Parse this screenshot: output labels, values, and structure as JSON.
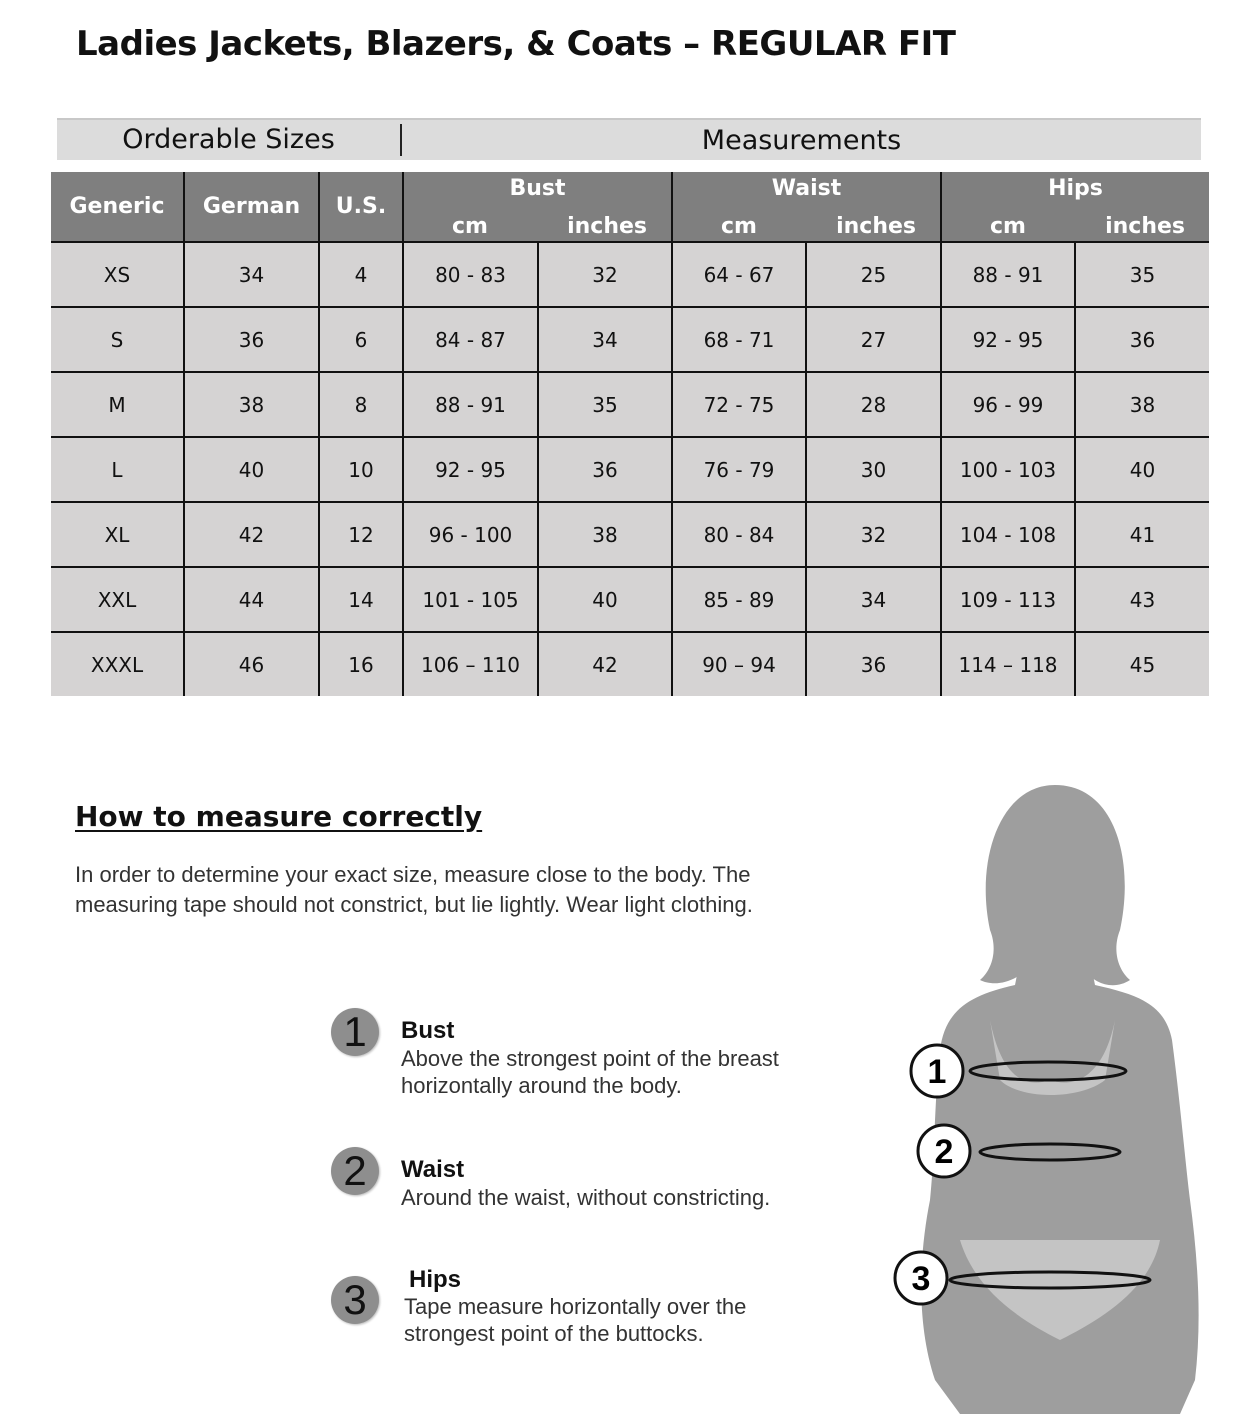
{
  "title": "Ladies Jackets, Blazers, & Coats – REGULAR FIT",
  "band": {
    "left": "Orderable Sizes",
    "right": "Measurements"
  },
  "table": {
    "headers": {
      "generic": "Generic",
      "german": "German",
      "us": "U.S.",
      "bust": "Bust",
      "waist": "Waist",
      "hips": "Hips",
      "cm": "cm",
      "inches": "inches"
    },
    "rows": [
      [
        "XS",
        "34",
        "4",
        "80 - 83",
        "32",
        "64 - 67",
        "25",
        "88 - 91",
        "35"
      ],
      [
        "S",
        "36",
        "6",
        "84 - 87",
        "34",
        "68 - 71",
        "27",
        "92 - 95",
        "36"
      ],
      [
        "M",
        "38",
        "8",
        "88 - 91",
        "35",
        "72 - 75",
        "28",
        "96 - 99",
        "38"
      ],
      [
        "L",
        "40",
        "10",
        "92 - 95",
        "36",
        "76 - 79",
        "30",
        "100 - 103",
        "40"
      ],
      [
        "XL",
        "42",
        "12",
        "96 - 100",
        "38",
        "80 - 84",
        "32",
        "104 - 108",
        "41"
      ],
      [
        "XXL",
        "44",
        "14",
        "101 - 105",
        "40",
        "85 - 89",
        "34",
        "109 - 113",
        "43"
      ],
      [
        "XXXL",
        "46",
        "16",
        "106 – 110",
        "42",
        "90 – 94",
        "36",
        "114 – 118",
        "45"
      ]
    ]
  },
  "how": {
    "heading": "How to measure correctly",
    "intro": "In order to determine your exact size, measure close to the body. The measuring tape should not constrict, but lie lightly. Wear light clothing.",
    "steps": [
      {
        "num": "1",
        "title": "Bust",
        "desc1": "Above the strongest point of the breast",
        "desc2": "horizontally around the body."
      },
      {
        "num": "2",
        "title": "Waist",
        "desc1": "Around the waist, without constricting.",
        "desc2": ""
      },
      {
        "num": "3",
        "title": "Hips",
        "desc1": "Tape measure horizontally over the",
        "desc2": "strongest point of the buttocks."
      }
    ]
  },
  "figure": {
    "markers": [
      "1",
      "2",
      "3"
    ]
  }
}
